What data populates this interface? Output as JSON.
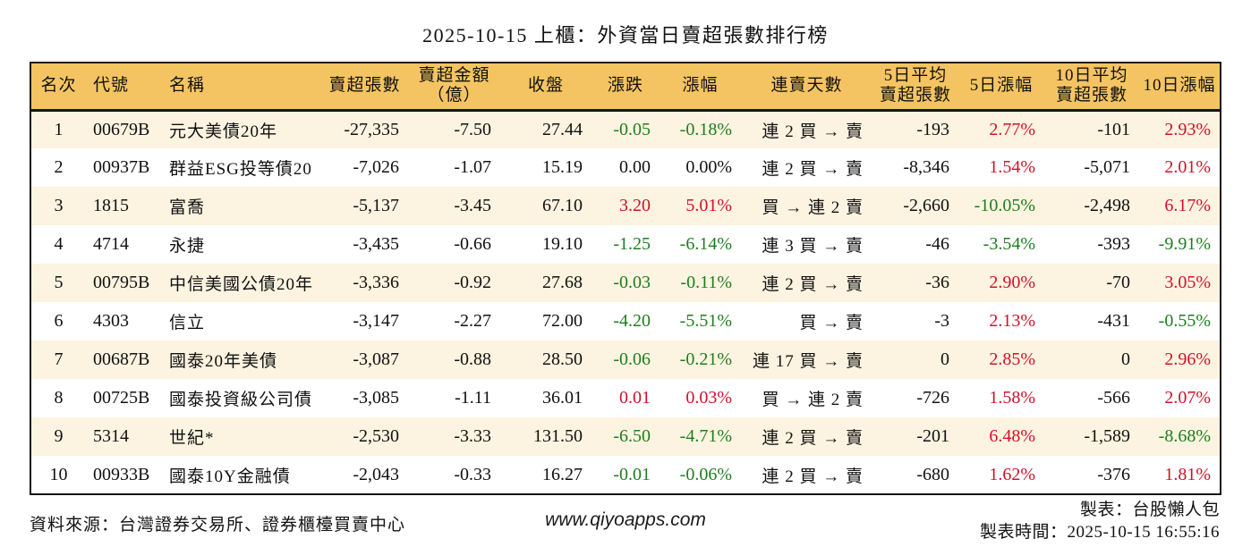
{
  "chart_data": {
    "type": "table",
    "title": "2025-10-15 上櫃：外資當日賣超張數排行榜",
    "columns": [
      {
        "key": "rank",
        "label": "名次"
      },
      {
        "key": "code",
        "label": "代號"
      },
      {
        "key": "name",
        "label": "名稱"
      },
      {
        "key": "sell_volume",
        "label": "賣超張數"
      },
      {
        "key": "sell_amount",
        "label": "賣超金額",
        "label2": "（億）"
      },
      {
        "key": "close",
        "label": "收盤"
      },
      {
        "key": "change",
        "label": "漲跌",
        "signed": true
      },
      {
        "key": "change_pct",
        "label": "漲幅",
        "signed": true
      },
      {
        "key": "streak",
        "label": "連賣天數"
      },
      {
        "key": "avg5",
        "label": "5日平均",
        "label2": "賣超張數"
      },
      {
        "key": "pct5",
        "label": "5日漲幅",
        "signed": true
      },
      {
        "key": "avg10",
        "label": "10日平均",
        "label2": "賣超張數"
      },
      {
        "key": "pct10",
        "label": "10日漲幅",
        "signed": true
      }
    ],
    "rows": [
      {
        "rank": "1",
        "code": "00679B",
        "name": "元大美債20年",
        "sell_volume": "-27,335",
        "sell_amount": "-7.50",
        "close": "27.44",
        "change": "-0.05",
        "change_pct": "-0.18%",
        "streak": "連 2 買 → 賣",
        "avg5": "-193",
        "pct5": "2.77%",
        "avg10": "-101",
        "pct10": "2.93%"
      },
      {
        "rank": "2",
        "code": "00937B",
        "name": "群益ESG投等債20",
        "sell_volume": "-7,026",
        "sell_amount": "-1.07",
        "close": "15.19",
        "change": "0.00",
        "change_pct": "0.00%",
        "streak": "連 2 買 → 賣",
        "avg5": "-8,346",
        "pct5": "1.54%",
        "avg10": "-5,071",
        "pct10": "2.01%"
      },
      {
        "rank": "3",
        "code": "1815",
        "name": "富喬",
        "sell_volume": "-5,137",
        "sell_amount": "-3.45",
        "close": "67.10",
        "change": "3.20",
        "change_pct": "5.01%",
        "streak": "買 → 連 2 賣",
        "avg5": "-2,660",
        "pct5": "-10.05%",
        "avg10": "-2,498",
        "pct10": "6.17%"
      },
      {
        "rank": "4",
        "code": "4714",
        "name": "永捷",
        "sell_volume": "-3,435",
        "sell_amount": "-0.66",
        "close": "19.10",
        "change": "-1.25",
        "change_pct": "-6.14%",
        "streak": "連 3 買 → 賣",
        "avg5": "-46",
        "pct5": "-3.54%",
        "avg10": "-393",
        "pct10": "-9.91%"
      },
      {
        "rank": "5",
        "code": "00795B",
        "name": "中信美國公債20年",
        "sell_volume": "-3,336",
        "sell_amount": "-0.92",
        "close": "27.68",
        "change": "-0.03",
        "change_pct": "-0.11%",
        "streak": "連 2 買 → 賣",
        "avg5": "-36",
        "pct5": "2.90%",
        "avg10": "-70",
        "pct10": "3.05%"
      },
      {
        "rank": "6",
        "code": "4303",
        "name": "信立",
        "sell_volume": "-3,147",
        "sell_amount": "-2.27",
        "close": "72.00",
        "change": "-4.20",
        "change_pct": "-5.51%",
        "streak": "買 → 賣",
        "avg5": "-3",
        "pct5": "2.13%",
        "avg10": "-431",
        "pct10": "-0.55%"
      },
      {
        "rank": "7",
        "code": "00687B",
        "name": "國泰20年美債",
        "sell_volume": "-3,087",
        "sell_amount": "-0.88",
        "close": "28.50",
        "change": "-0.06",
        "change_pct": "-0.21%",
        "streak": "連 17 買 → 賣",
        "avg5": "0",
        "pct5": "2.85%",
        "avg10": "0",
        "pct10": "2.96%"
      },
      {
        "rank": "8",
        "code": "00725B",
        "name": "國泰投資級公司債",
        "sell_volume": "-3,085",
        "sell_amount": "-1.11",
        "close": "36.01",
        "change": "0.01",
        "change_pct": "0.03%",
        "streak": "買 → 連 2 賣",
        "avg5": "-726",
        "pct5": "1.58%",
        "avg10": "-566",
        "pct10": "2.07%"
      },
      {
        "rank": "9",
        "code": "5314",
        "name": "世紀*",
        "sell_volume": "-2,530",
        "sell_amount": "-3.33",
        "close": "131.50",
        "change": "-6.50",
        "change_pct": "-4.71%",
        "streak": "連 2 買 → 賣",
        "avg5": "-201",
        "pct5": "6.48%",
        "avg10": "-1,589",
        "pct10": "-8.68%"
      },
      {
        "rank": "10",
        "code": "00933B",
        "name": "國泰10Y金融債",
        "sell_volume": "-2,043",
        "sell_amount": "-0.33",
        "close": "16.27",
        "change": "-0.01",
        "change_pct": "-0.06%",
        "streak": "連 2 買 → 賣",
        "avg5": "-680",
        "pct5": "1.62%",
        "avg10": "-376",
        "pct10": "1.81%"
      }
    ],
    "legend_position": "none",
    "grid": false
  },
  "colors": {
    "header_bg": "#F5C462",
    "row_alt_bg": "#FCF3E0",
    "up_red": "#D0112B",
    "down_green": "#1E7E1E",
    "border": "#151515"
  },
  "footer": {
    "source": "資料來源：台灣證券交易所、證券櫃檯買賣中心",
    "website": "www.qiyoapps.com",
    "author": "製表：台股懶人包",
    "generated": "製表時間：2025-10-15 16:55:16"
  }
}
